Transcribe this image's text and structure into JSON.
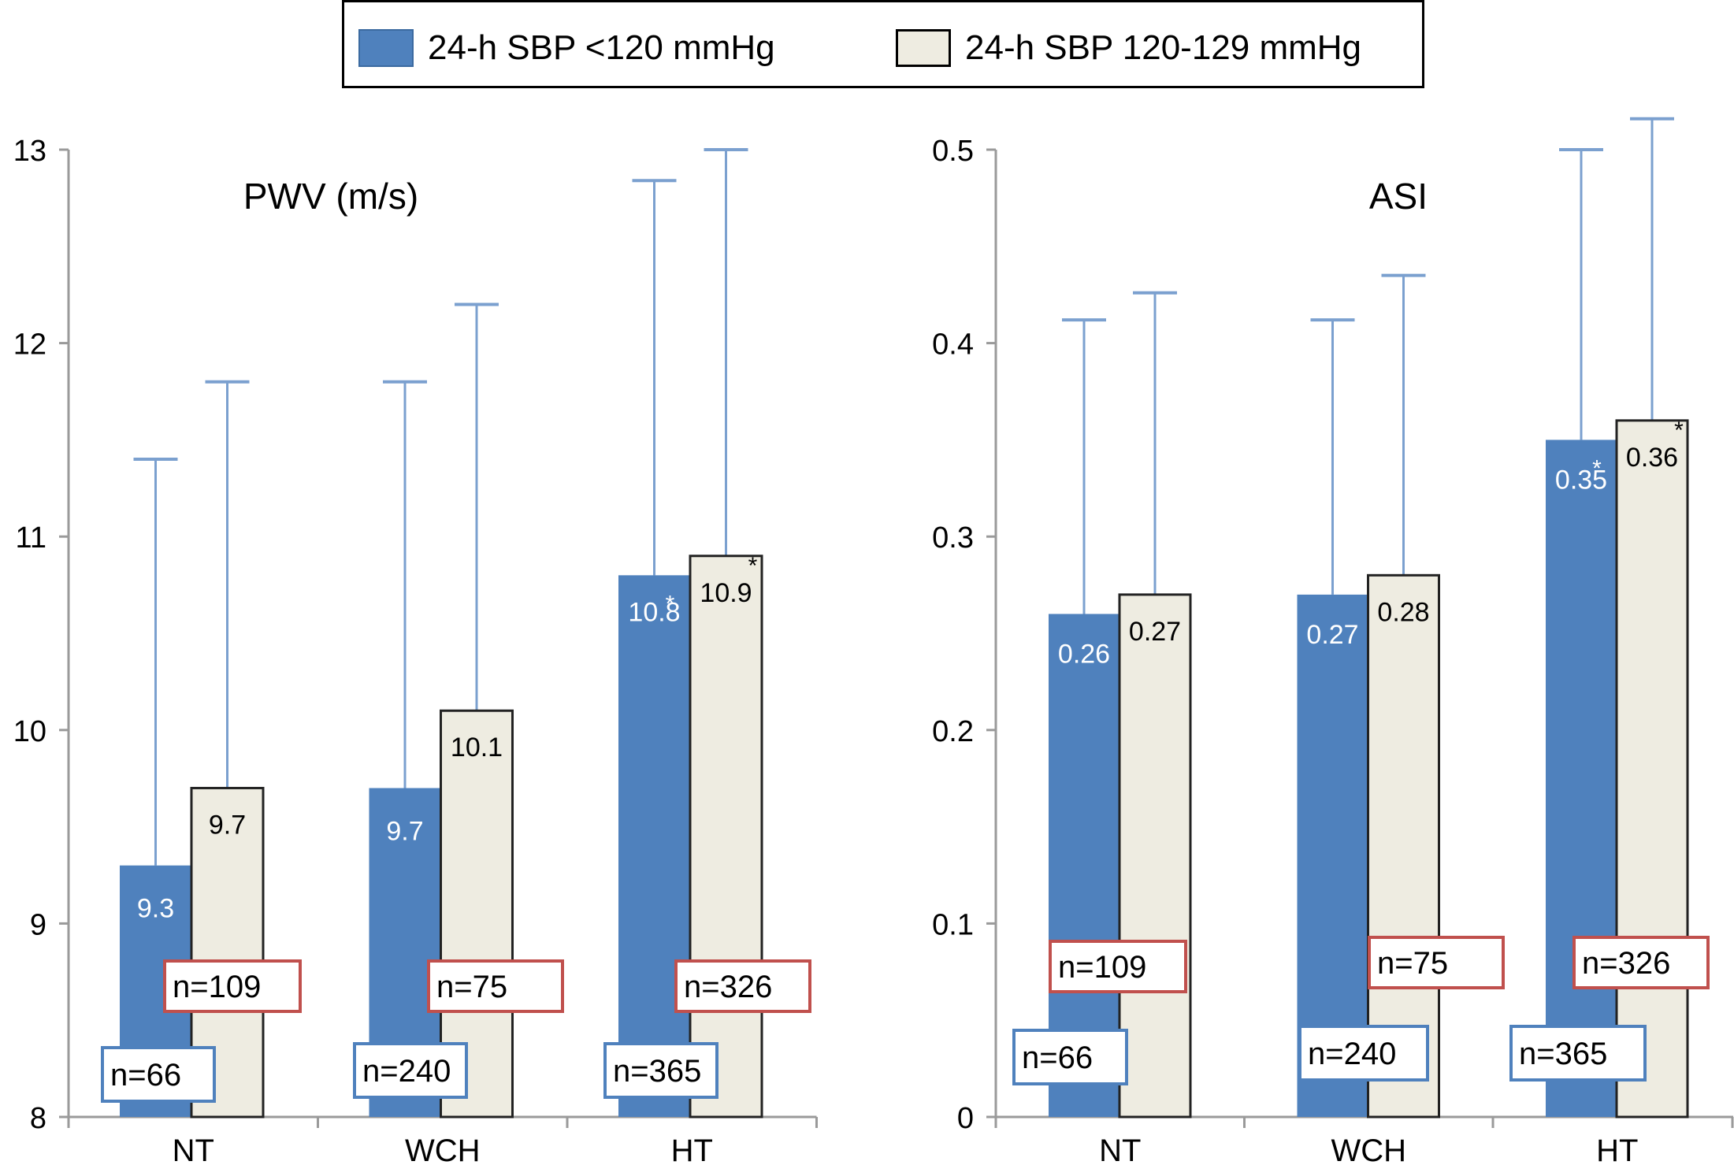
{
  "legend": {
    "items": [
      {
        "label": "24-h SBP <120 mmHg",
        "color": "#4f81bd",
        "border": "#3b6aa0"
      },
      {
        "label": "24-h SBP 120-129 mmHg",
        "color": "#eeece1",
        "border": "#000000"
      }
    ]
  },
  "chart_data": [
    {
      "type": "bar",
      "title": "PWV (m/s)",
      "categories": [
        "NT",
        "WCH",
        "HT"
      ],
      "ylim": [
        8,
        13
      ],
      "yticks": [
        8,
        9,
        10,
        11,
        12,
        13
      ],
      "series": [
        {
          "name": "24-h SBP <120 mmHg",
          "values": [
            9.3,
            9.7,
            10.8
          ],
          "error_upper": [
            11.4,
            11.8,
            12.84
          ],
          "labels": [
            "9.3",
            "9.7",
            "10.8"
          ],
          "significant": [
            false,
            false,
            true
          ],
          "n": [
            "n=66",
            "n=240",
            "n=365"
          ]
        },
        {
          "name": "24-h SBP 120-129 mmHg",
          "values": [
            9.7,
            10.1,
            10.9
          ],
          "error_upper": [
            11.8,
            12.2,
            13.0
          ],
          "labels": [
            "9.7",
            "10.1",
            "10.9"
          ],
          "significant": [
            false,
            false,
            true
          ],
          "n": [
            "n=109",
            "n=75",
            "n=326"
          ]
        }
      ],
      "annotation_symbol": "*",
      "grid": false
    },
    {
      "type": "bar",
      "title": "ASI",
      "categories": [
        "NT",
        "WCH",
        "HT"
      ],
      "ylim": [
        0,
        0.5
      ],
      "yticks": [
        "0",
        "0.1",
        "0.2",
        "0.3",
        "0.4",
        "0.5"
      ],
      "series": [
        {
          "name": "24-h SBP <120 mmHg",
          "values": [
            0.26,
            0.27,
            0.35
          ],
          "error_upper": [
            0.412,
            0.412,
            0.5
          ],
          "labels": [
            "0.26",
            "0.27",
            "0.35"
          ],
          "significant": [
            false,
            false,
            true
          ],
          "n": [
            "n=66",
            "n=240",
            "n=365"
          ]
        },
        {
          "name": "24-h SBP 120-129 mmHg",
          "values": [
            0.27,
            0.28,
            0.36
          ],
          "error_upper": [
            0.426,
            0.435,
            0.516
          ],
          "labels": [
            "0.27",
            "0.28",
            "0.36"
          ],
          "significant": [
            false,
            false,
            true
          ],
          "n": [
            "n=109",
            "n=75",
            "n=326"
          ]
        }
      ],
      "annotation_symbol": "*",
      "grid": false
    }
  ]
}
